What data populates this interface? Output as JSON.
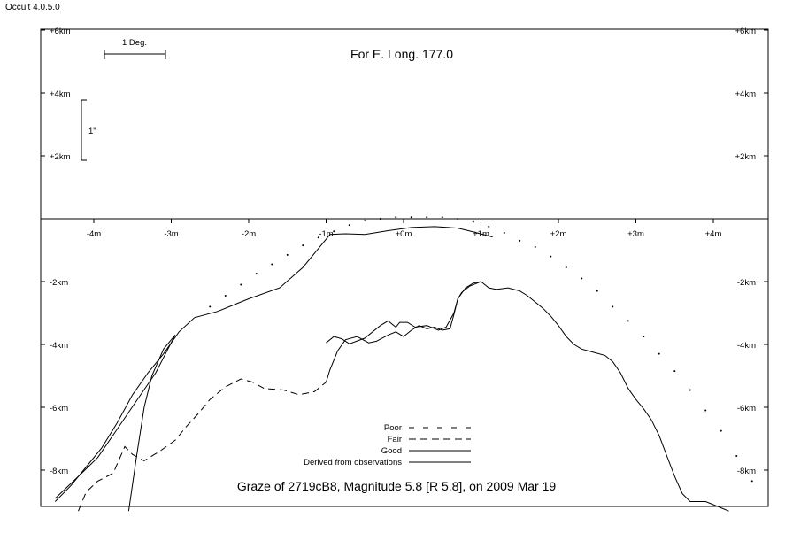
{
  "app": {
    "title": "Occult 4.0.5.0"
  },
  "chart_data": {
    "type": "line",
    "title": "For E. Long. 177.0",
    "caption": "Graze of  2719cB8,  Magnitude 5.8 [R 5.8],  on 2009 Mar 19",
    "scale_bars": {
      "horizontal": "1 Deg.",
      "vertical": "1\""
    },
    "x_ticks": [
      {
        "value": -4,
        "label": "-4m"
      },
      {
        "value": -3,
        "label": "-3m"
      },
      {
        "value": -2,
        "label": "-2m"
      },
      {
        "value": -1,
        "label": "-1m"
      },
      {
        "value": 0,
        "label": "+0m"
      },
      {
        "value": 1,
        "label": "+1m"
      },
      {
        "value": 2,
        "label": "+2m"
      },
      {
        "value": 3,
        "label": "+3m"
      },
      {
        "value": 4,
        "label": "+4m"
      }
    ],
    "y_ticks": [
      {
        "value": 6,
        "label": "+6km"
      },
      {
        "value": 4,
        "label": "+4km"
      },
      {
        "value": 2,
        "label": "+2km"
      },
      {
        "value": -2,
        "label": "-2km"
      },
      {
        "value": -4,
        "label": "-4km"
      },
      {
        "value": -6,
        "label": "-6km"
      },
      {
        "value": -8,
        "label": "-8km"
      }
    ],
    "xlim": [
      -4.7,
      4.7
    ],
    "ylim": [
      -9.3,
      6
    ],
    "legend": {
      "placement": "bottom-center",
      "entries": [
        {
          "name": "Poor",
          "style": "poor"
        },
        {
          "name": "Fair",
          "style": "fair"
        },
        {
          "name": "Good",
          "style": "good"
        },
        {
          "name": "Derived from observations",
          "style": "good"
        }
      ]
    },
    "series": [
      {
        "style": "dotted",
        "points": [
          [
            -2.5,
            -2.8
          ],
          [
            -2.3,
            -2.45
          ],
          [
            -2.1,
            -2.1
          ],
          [
            -1.9,
            -1.75
          ],
          [
            -1.7,
            -1.45
          ],
          [
            -1.5,
            -1.15
          ],
          [
            -1.3,
            -0.85
          ],
          [
            -1.1,
            -0.6
          ],
          [
            -0.9,
            -0.4
          ],
          [
            -0.7,
            -0.2
          ],
          [
            -0.5,
            -0.05
          ],
          [
            -0.3,
            0.0
          ],
          [
            -0.1,
            0.05
          ],
          [
            0.1,
            0.05
          ],
          [
            0.3,
            0.05
          ],
          [
            0.5,
            0.05
          ],
          [
            0.7,
            0.0
          ],
          [
            0.9,
            -0.1
          ],
          [
            1.1,
            -0.25
          ],
          [
            1.3,
            -0.45
          ],
          [
            1.5,
            -0.7
          ],
          [
            1.7,
            -0.9
          ],
          [
            1.9,
            -1.2
          ],
          [
            2.1,
            -1.55
          ],
          [
            2.3,
            -1.9
          ],
          [
            2.5,
            -2.3
          ],
          [
            2.7,
            -2.8
          ],
          [
            2.9,
            -3.25
          ],
          [
            3.1,
            -3.75
          ],
          [
            3.3,
            -4.3
          ],
          [
            3.5,
            -4.85
          ],
          [
            3.7,
            -5.45
          ],
          [
            3.9,
            -6.1
          ],
          [
            4.1,
            -6.75
          ],
          [
            4.3,
            -7.55
          ],
          [
            4.5,
            -8.35
          ]
        ]
      },
      {
        "style": "solid",
        "points": [
          [
            -4.5,
            -9.0
          ],
          [
            -4.3,
            -8.5
          ],
          [
            -4.1,
            -7.9
          ],
          [
            -3.9,
            -7.3
          ],
          [
            -3.7,
            -6.5
          ],
          [
            -3.5,
            -5.6
          ],
          [
            -3.3,
            -4.9
          ],
          [
            -3.1,
            -4.3
          ],
          [
            -2.9,
            -3.6
          ],
          [
            -2.7,
            -3.15
          ],
          [
            -2.4,
            -2.95
          ],
          [
            -2.0,
            -2.55
          ],
          [
            -1.6,
            -2.2
          ],
          [
            -1.3,
            -1.55
          ],
          [
            -1.1,
            -0.95
          ],
          [
            -0.95,
            -0.5
          ],
          [
            -0.75,
            -0.48
          ],
          [
            -0.5,
            -0.5
          ],
          [
            -0.2,
            -0.38
          ],
          [
            0.1,
            -0.28
          ],
          [
            0.4,
            -0.25
          ],
          [
            0.7,
            -0.3
          ],
          [
            0.9,
            -0.42
          ],
          [
            1.15,
            -0.58
          ]
        ]
      },
      {
        "style": "solid",
        "points": [
          [
            -4.5,
            -8.9
          ],
          [
            -4.2,
            -8.2
          ],
          [
            -3.95,
            -7.6
          ],
          [
            -3.7,
            -6.7
          ],
          [
            -3.45,
            -5.8
          ],
          [
            -3.2,
            -4.9
          ],
          [
            -2.95,
            -3.7
          ]
        ]
      },
      {
        "style": "solid",
        "points": [
          [
            -3.55,
            -9.3
          ],
          [
            -3.45,
            -7.6
          ],
          [
            -3.35,
            -6.0
          ],
          [
            -3.25,
            -5.0
          ],
          [
            -3.1,
            -4.15
          ],
          [
            -2.95,
            -3.7
          ]
        ]
      },
      {
        "style": "solid",
        "points": [
          [
            -1.0,
            -3.95
          ],
          [
            -0.9,
            -3.75
          ],
          [
            -0.8,
            -3.82
          ],
          [
            -0.7,
            -3.98
          ],
          [
            -0.5,
            -3.8
          ],
          [
            -0.3,
            -3.4
          ],
          [
            -0.2,
            -3.25
          ],
          [
            -0.1,
            -3.45
          ],
          [
            -0.05,
            -3.3
          ],
          [
            0.05,
            -3.3
          ],
          [
            0.15,
            -3.45
          ],
          [
            0.3,
            -3.4
          ],
          [
            0.45,
            -3.55
          ],
          [
            0.55,
            -3.45
          ],
          [
            0.65,
            -3.0
          ],
          [
            0.7,
            -2.55
          ],
          [
            0.8,
            -2.2
          ],
          [
            0.9,
            -2.05
          ],
          [
            1.0,
            -2.0
          ],
          [
            1.1,
            -2.2
          ],
          [
            1.2,
            -2.25
          ],
          [
            1.35,
            -2.2
          ],
          [
            1.5,
            -2.3
          ],
          [
            1.6,
            -2.45
          ],
          [
            1.7,
            -2.65
          ],
          [
            1.8,
            -2.85
          ],
          [
            1.9,
            -3.1
          ],
          [
            2.0,
            -3.4
          ],
          [
            2.1,
            -3.75
          ],
          [
            2.2,
            -4.0
          ],
          [
            2.3,
            -4.15
          ],
          [
            2.45,
            -4.25
          ],
          [
            2.6,
            -4.35
          ],
          [
            2.7,
            -4.55
          ],
          [
            2.8,
            -4.9
          ],
          [
            2.9,
            -5.4
          ],
          [
            3.0,
            -5.75
          ],
          [
            3.1,
            -6.05
          ],
          [
            3.2,
            -6.4
          ],
          [
            3.3,
            -6.9
          ],
          [
            3.4,
            -7.55
          ],
          [
            3.5,
            -8.2
          ],
          [
            3.6,
            -8.75
          ],
          [
            3.7,
            -9.0
          ],
          [
            3.8,
            -9.0
          ],
          [
            3.9,
            -9.0
          ],
          [
            4.0,
            -9.1
          ],
          [
            4.1,
            -9.2
          ],
          [
            4.2,
            -9.3
          ]
        ]
      },
      {
        "style": "dashed",
        "points": [
          [
            -4.2,
            -9.3
          ],
          [
            -4.1,
            -8.7
          ],
          [
            -3.95,
            -8.35
          ],
          [
            -3.75,
            -8.1
          ],
          [
            -3.6,
            -7.25
          ],
          [
            -3.5,
            -7.5
          ],
          [
            -3.35,
            -7.7
          ],
          [
            -3.15,
            -7.4
          ],
          [
            -2.95,
            -7.05
          ],
          [
            -2.8,
            -6.6
          ],
          [
            -2.65,
            -6.2
          ],
          [
            -2.5,
            -5.75
          ],
          [
            -2.3,
            -5.35
          ],
          [
            -2.1,
            -5.1
          ],
          [
            -1.95,
            -5.2
          ],
          [
            -1.8,
            -5.4
          ],
          [
            -1.55,
            -5.45
          ],
          [
            -1.35,
            -5.6
          ],
          [
            -1.15,
            -5.5
          ],
          [
            -1.0,
            -5.2
          ]
        ]
      },
      {
        "style": "solid",
        "points": [
          [
            -1.0,
            -5.2
          ],
          [
            -0.95,
            -4.8
          ],
          [
            -0.85,
            -4.2
          ],
          [
            -0.75,
            -3.85
          ],
          [
            -0.6,
            -3.75
          ],
          [
            -0.45,
            -3.95
          ],
          [
            -0.35,
            -3.9
          ],
          [
            -0.2,
            -3.7
          ],
          [
            -0.1,
            -3.6
          ],
          [
            0.0,
            -3.75
          ],
          [
            0.1,
            -3.55
          ],
          [
            0.2,
            -3.4
          ],
          [
            0.3,
            -3.5
          ],
          [
            0.4,
            -3.45
          ],
          [
            0.5,
            -3.55
          ],
          [
            0.6,
            -3.5
          ],
          [
            0.65,
            -3.05
          ],
          [
            0.7,
            -2.55
          ],
          [
            0.75,
            -2.35
          ],
          [
            0.85,
            -2.15
          ],
          [
            0.95,
            -2.05
          ],
          [
            1.0,
            -2.0
          ]
        ]
      }
    ]
  }
}
